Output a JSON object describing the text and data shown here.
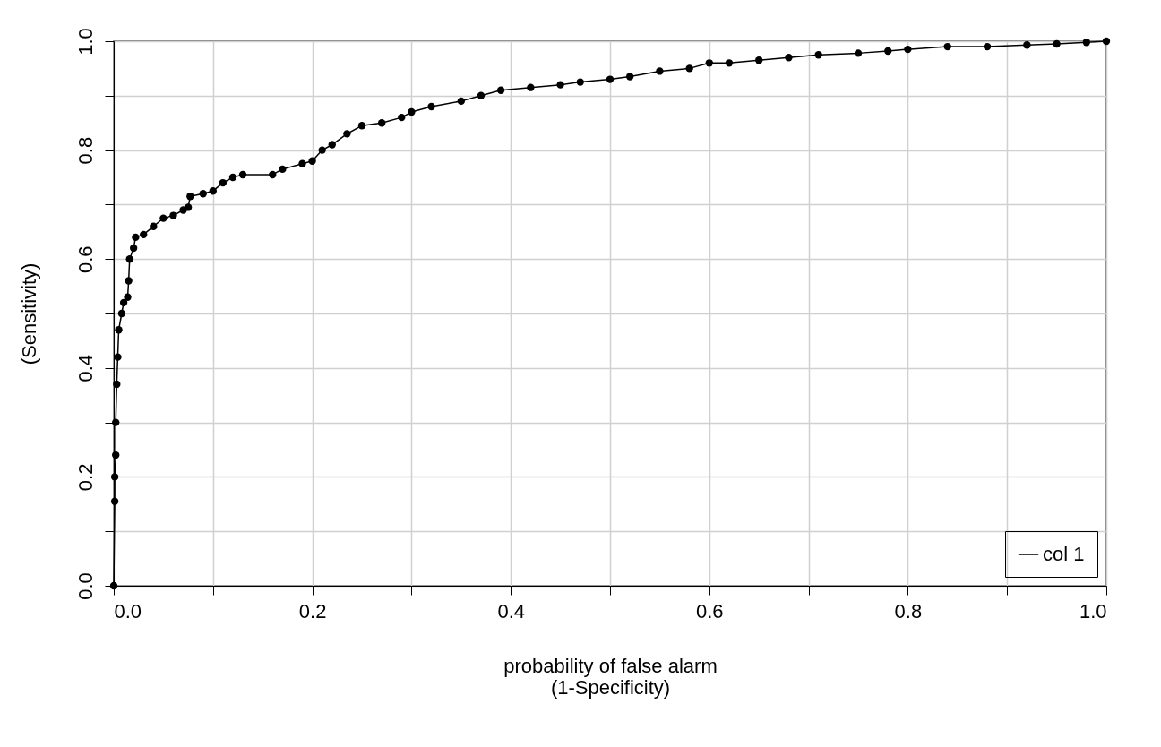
{
  "chart_data": {
    "type": "line",
    "xlabel": "probability of false alarm\n(1-Specificity)",
    "ylabel": "(Sensitivity)",
    "xlim": [
      0,
      1
    ],
    "ylim": [
      0,
      1
    ],
    "xticks": [
      {
        "value": 0,
        "label": "0.0"
      },
      {
        "value": 0.1,
        "label": null
      },
      0.2,
      {
        "value": 0.3,
        "label": null
      },
      0.4,
      {
        "value": 0.5,
        "label": null
      },
      0.6,
      {
        "value": 0.7,
        "label": null
      },
      0.8,
      {
        "value": 0.9,
        "label": null
      },
      {
        "value": 1,
        "label": "1.0"
      }
    ],
    "yticks": [
      {
        "value": 0,
        "label": "0.0"
      },
      {
        "value": 0.1,
        "label": null
      },
      0.2,
      {
        "value": 0.3,
        "label": null
      },
      0.4,
      {
        "value": 0.5,
        "label": null
      },
      0.6,
      {
        "value": 0.7,
        "label": null
      },
      0.8,
      {
        "value": 0.9,
        "label": null
      },
      {
        "value": 1,
        "label": "1.0"
      }
    ],
    "grid": true,
    "legend": "bottom right",
    "marker": "circle",
    "line_style": "solid",
    "series": [
      {
        "name": "col 1",
        "color": "#000000",
        "x": [
          0,
          0.001,
          0.001,
          0.002,
          0.002,
          0.003,
          0.004,
          0.005,
          0.008,
          0.01,
          0.014,
          0.015,
          0.016,
          0.02,
          0.022,
          0.03,
          0.04,
          0.05,
          0.06,
          0.07,
          0.075,
          0.077,
          0.09,
          0.1,
          0.11,
          0.12,
          0.13,
          0.16,
          0.17,
          0.19,
          0.2,
          0.21,
          0.22,
          0.235,
          0.25,
          0.27,
          0.29,
          0.3,
          0.32,
          0.35,
          0.37,
          0.39,
          0.42,
          0.45,
          0.47,
          0.5,
          0.52,
          0.55,
          0.58,
          0.6,
          0.62,
          0.65,
          0.68,
          0.71,
          0.75,
          0.78,
          0.8,
          0.84,
          0.88,
          0.92,
          0.95,
          0.98,
          1.0
        ],
        "values": [
          0,
          0.155,
          0.2,
          0.24,
          0.3,
          0.37,
          0.42,
          0.47,
          0.5,
          0.52,
          0.53,
          0.56,
          0.6,
          0.62,
          0.64,
          0.645,
          0.66,
          0.675,
          0.68,
          0.69,
          0.695,
          0.715,
          0.72,
          0.725,
          0.74,
          0.75,
          0.755,
          0.755,
          0.765,
          0.775,
          0.78,
          0.8,
          0.81,
          0.83,
          0.845,
          0.85,
          0.86,
          0.87,
          0.88,
          0.89,
          0.9,
          0.91,
          0.915,
          0.92,
          0.925,
          0.93,
          0.935,
          0.945,
          0.95,
          0.96,
          0.96,
          0.965,
          0.97,
          0.975,
          0.978,
          0.982,
          0.985,
          0.99,
          0.99,
          0.993,
          0.995,
          0.998,
          1.0
        ]
      }
    ]
  }
}
